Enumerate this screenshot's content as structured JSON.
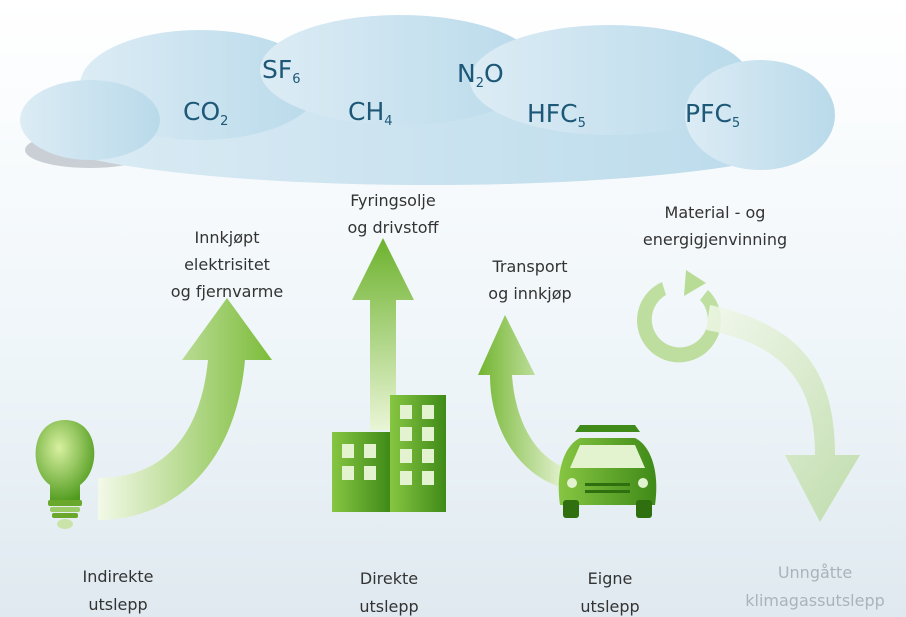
{
  "gases": [
    {
      "main": "SF",
      "sub": "6"
    },
    {
      "main": "N",
      "sub": "2",
      "after": "O"
    },
    {
      "main": "CO",
      "sub": "2"
    },
    {
      "main": "CH",
      "sub": "4"
    },
    {
      "main": "HFC",
      "sub": "5"
    },
    {
      "main": "PFC",
      "sub": "5"
    }
  ],
  "sources": [
    {
      "lines": [
        "Innkjøpt",
        "elektrisitet",
        "og fjernvarme"
      ]
    },
    {
      "lines": [
        "Fyringsolje",
        "og drivstoff"
      ]
    },
    {
      "lines": [
        "Transport",
        "og innkjøp"
      ]
    },
    {
      "lines": [
        "Material - og",
        "energigjenvinning"
      ]
    }
  ],
  "scopes": [
    {
      "lines": [
        "Indirekte",
        "utslepp"
      ]
    },
    {
      "lines": [
        "Direkte",
        "utslepp"
      ]
    },
    {
      "lines": [
        "Eigne",
        "utslepp"
      ]
    },
    {
      "lines": [
        "Unngåtte",
        "klimagassutslepp"
      ]
    }
  ]
}
